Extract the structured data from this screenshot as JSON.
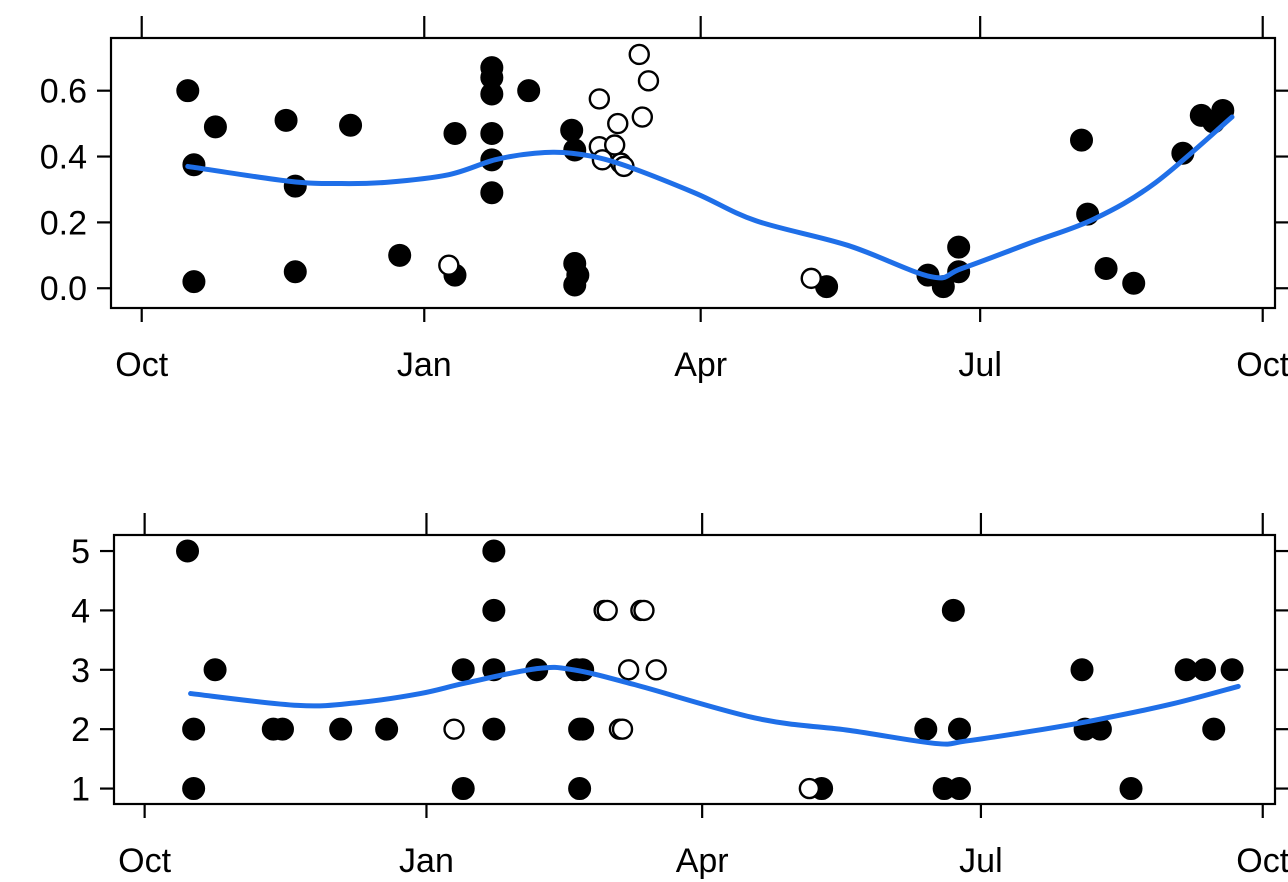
{
  "chart_data": [
    {
      "type": "scatter",
      "title": "",
      "xlabel": "",
      "ylabel": "",
      "x_ticks": [
        "Oct",
        "Jan",
        "Apr",
        "Jul",
        "Oct"
      ],
      "y_ticks": [
        "0.0",
        "0.2",
        "0.4",
        "0.6"
      ],
      "ylim": [
        -0.06,
        0.76
      ],
      "xlim_days": [
        -10,
        369
      ],
      "grid": false,
      "legend": "none",
      "colors": {
        "filled": "#000000",
        "open": "#000000",
        "smooth": "#1f6fe8"
      },
      "points_filled": [
        [
          15,
          0.6
        ],
        [
          17,
          0.375
        ],
        [
          17,
          0.02
        ],
        [
          24,
          0.49
        ],
        [
          47,
          0.51
        ],
        [
          50,
          0.31
        ],
        [
          50,
          0.05
        ],
        [
          68,
          0.495
        ],
        [
          84,
          0.1
        ],
        [
          102,
          0.47
        ],
        [
          102,
          0.04
        ],
        [
          114,
          0.67
        ],
        [
          114,
          0.64
        ],
        [
          114,
          0.59
        ],
        [
          114,
          0.47
        ],
        [
          114,
          0.39
        ],
        [
          114,
          0.29
        ],
        [
          126,
          0.6
        ],
        [
          140,
          0.48
        ],
        [
          141,
          0.42
        ],
        [
          141,
          0.075
        ],
        [
          142,
          0.04
        ],
        [
          141,
          0.01
        ],
        [
          223,
          0.005
        ],
        [
          256,
          0.04
        ],
        [
          261,
          0.005
        ],
        [
          266,
          0.125
        ],
        [
          266,
          0.05
        ],
        [
          306,
          0.45
        ],
        [
          308,
          0.225
        ],
        [
          314,
          0.06
        ],
        [
          323,
          0.015
        ],
        [
          339,
          0.41
        ],
        [
          345,
          0.525
        ],
        [
          349,
          0.505
        ],
        [
          352,
          0.54
        ]
      ],
      "points_open": [
        [
          100,
          0.07
        ],
        [
          149,
          0.575
        ],
        [
          149,
          0.43
        ],
        [
          150,
          0.39
        ],
        [
          154,
          0.435
        ],
        [
          155,
          0.5
        ],
        [
          156,
          0.38
        ],
        [
          157,
          0.37
        ],
        [
          162,
          0.71
        ],
        [
          163,
          0.52
        ],
        [
          165,
          0.63
        ],
        [
          218,
          0.03
        ]
      ],
      "smooth": [
        [
          15,
          0.37
        ],
        [
          48,
          0.325
        ],
        [
          65,
          0.318
        ],
        [
          80,
          0.322
        ],
        [
          100,
          0.345
        ],
        [
          115,
          0.39
        ],
        [
          128,
          0.41
        ],
        [
          140,
          0.41
        ],
        [
          155,
          0.38
        ],
        [
          180,
          0.29
        ],
        [
          200,
          0.205
        ],
        [
          230,
          0.13
        ],
        [
          257,
          0.035
        ],
        [
          267,
          0.06
        ],
        [
          290,
          0.14
        ],
        [
          310,
          0.21
        ],
        [
          330,
          0.32
        ],
        [
          355,
          0.52
        ]
      ]
    },
    {
      "type": "scatter",
      "title": "",
      "xlabel": "",
      "ylabel": "",
      "x_ticks": [
        "Oct",
        "Jan",
        "Apr",
        "Jul",
        "Oct"
      ],
      "y_ticks": [
        "1",
        "2",
        "3",
        "4",
        "5"
      ],
      "ylim": [
        0.74,
        5.27
      ],
      "xlim_days": [
        -10,
        369
      ],
      "grid": false,
      "legend": "none",
      "colors": {
        "filled": "#000000",
        "open": "#000000",
        "smooth": "#1f6fe8"
      },
      "points_filled": [
        [
          14,
          5
        ],
        [
          16,
          2
        ],
        [
          16,
          1
        ],
        [
          23,
          3
        ],
        [
          42,
          2
        ],
        [
          45,
          2
        ],
        [
          64,
          2
        ],
        [
          79,
          2
        ],
        [
          104,
          3
        ],
        [
          104,
          1
        ],
        [
          114,
          5
        ],
        [
          114,
          4
        ],
        [
          114,
          3
        ],
        [
          114,
          2
        ],
        [
          128,
          3
        ],
        [
          141,
          3
        ],
        [
          143,
          3
        ],
        [
          142,
          2
        ],
        [
          143,
          2
        ],
        [
          142,
          1
        ],
        [
          221,
          1
        ],
        [
          255,
          2
        ],
        [
          261,
          1
        ],
        [
          264,
          4
        ],
        [
          266,
          2
        ],
        [
          266,
          1
        ],
        [
          306,
          3
        ],
        [
          307,
          2
        ],
        [
          312,
          2
        ],
        [
          322,
          1
        ],
        [
          340,
          3
        ],
        [
          346,
          3
        ],
        [
          349,
          2
        ],
        [
          355,
          3
        ]
      ],
      "points_open": [
        [
          101,
          2
        ],
        [
          150,
          4
        ],
        [
          151,
          4
        ],
        [
          155,
          2
        ],
        [
          156,
          2
        ],
        [
          158,
          3
        ],
        [
          162,
          4
        ],
        [
          163,
          4
        ],
        [
          167,
          3
        ],
        [
          217,
          1
        ]
      ],
      "smooth": [
        [
          15,
          2.6
        ],
        [
          50,
          2.4
        ],
        [
          70,
          2.45
        ],
        [
          90,
          2.6
        ],
        [
          105,
          2.78
        ],
        [
          128,
          3.02
        ],
        [
          140,
          3.0
        ],
        [
          160,
          2.75
        ],
        [
          200,
          2.18
        ],
        [
          230,
          1.98
        ],
        [
          258,
          1.76
        ],
        [
          268,
          1.8
        ],
        [
          290,
          1.97
        ],
        [
          310,
          2.15
        ],
        [
          335,
          2.42
        ],
        [
          357,
          2.72
        ]
      ]
    }
  ]
}
